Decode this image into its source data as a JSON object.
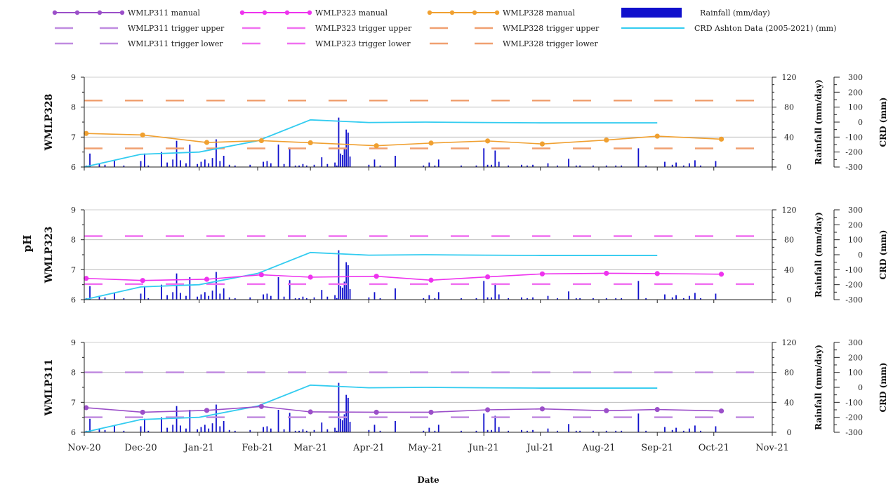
{
  "chart_data": {
    "type": "line",
    "shared": {
      "x_tick_labels": [
        "Nov-20",
        "Dec-20",
        "Jan-21",
        "Feb-21",
        "Mar-21",
        "Apr-21",
        "May-21",
        "Jun-21",
        "Jul-21",
        "Aug-21",
        "Sep-21",
        "Oct-21",
        "Nov-21"
      ],
      "x_tick_dates": [
        "2020-11-01",
        "2020-12-01",
        "2021-01-01",
        "2021-02-01",
        "2021-03-01",
        "2021-04-01",
        "2021-05-01",
        "2021-06-01",
        "2021-07-01",
        "2021-08-01",
        "2021-09-01",
        "2021-10-01",
        "2021-11-01"
      ],
      "xlim": [
        "2020-11-01",
        "2021-11-01"
      ],
      "xlabel": "Date",
      "ylabel_main": "pH",
      "ylim_ph": [
        6,
        9
      ],
      "yticks_ph": [
        6,
        7,
        8,
        9
      ],
      "ylabel_rain": "Rainfall (mm/day)",
      "ylim_rain": [
        0,
        120
      ],
      "yticks_rain": [
        0,
        40,
        80,
        120
      ],
      "ylabel_crd": "CRD (mm)",
      "ylim_crd": [
        -300,
        300
      ],
      "yticks_crd": [
        -300,
        -200,
        -100,
        0,
        100,
        200,
        300
      ],
      "grid": "horizontal at pH 7 and 8",
      "legend_position": "top"
    },
    "legend": [
      {
        "label": "WMLP311 manual",
        "style": "line-marker",
        "color": "#9b4fc9"
      },
      {
        "label": "WMLP323 manual",
        "style": "line-marker",
        "color": "#ee33ee"
      },
      {
        "label": "WMLP328 manual",
        "style": "line-marker",
        "color": "#f0a030"
      },
      {
        "label": "Rainfall (mm/day)",
        "style": "bar",
        "color": "#1010cc"
      },
      {
        "label": "WMLP311 trigger upper",
        "style": "dash",
        "color": "#c08be0"
      },
      {
        "label": "WMLP323 trigger upper",
        "style": "dash",
        "color": "#f070f0"
      },
      {
        "label": "WMLP328 trigger upper",
        "style": "dash",
        "color": "#f0a070"
      },
      {
        "label": "CRD Ashton Data (2005-2021) (mm)",
        "style": "line",
        "color": "#33ccf0"
      },
      {
        "label": "WMLP311 trigger lower",
        "style": "dash",
        "color": "#c08be0"
      },
      {
        "label": "WMLP323 trigger lower",
        "style": "dash",
        "color": "#f070f0"
      },
      {
        "label": "WMLP328 trigger lower",
        "style": "dash",
        "color": "#f0a070"
      }
    ],
    "rainfall": {
      "dates": [
        "2020-11-02",
        "2020-11-04",
        "2020-11-09",
        "2020-11-12",
        "2020-11-17",
        "2020-11-22",
        "2020-12-01",
        "2020-12-03",
        "2020-12-05",
        "2020-12-12",
        "2020-12-15",
        "2020-12-18",
        "2020-12-20",
        "2020-12-22",
        "2020-12-25",
        "2020-12-27",
        "2020-12-31",
        "2021-01-02",
        "2021-01-04",
        "2021-01-06",
        "2021-01-08",
        "2021-01-10",
        "2021-01-12",
        "2021-01-14",
        "2021-01-17",
        "2021-01-20",
        "2021-01-28",
        "2021-02-04",
        "2021-02-06",
        "2021-02-08",
        "2021-02-12",
        "2021-02-15",
        "2021-02-18",
        "2021-02-21",
        "2021-02-23",
        "2021-02-25",
        "2021-02-27",
        "2021-03-03",
        "2021-03-07",
        "2021-03-10",
        "2021-03-14",
        "2021-03-15",
        "2021-03-16",
        "2021-03-17",
        "2021-03-18",
        "2021-03-19",
        "2021-03-20",
        "2021-03-21",
        "2021-03-22",
        "2021-04-01",
        "2021-04-04",
        "2021-04-07",
        "2021-04-15",
        "2021-04-30",
        "2021-05-03",
        "2021-05-06",
        "2021-05-08",
        "2021-05-20",
        "2021-05-28",
        "2021-06-01",
        "2021-06-03",
        "2021-06-05",
        "2021-06-07",
        "2021-06-09",
        "2021-06-14",
        "2021-06-21",
        "2021-06-24",
        "2021-06-27",
        "2021-07-05",
        "2021-07-10",
        "2021-07-16",
        "2021-07-20",
        "2021-07-22",
        "2021-07-29",
        "2021-08-05",
        "2021-08-10",
        "2021-08-13",
        "2021-08-22",
        "2021-08-26",
        "2021-09-05",
        "2021-09-09",
        "2021-09-11",
        "2021-09-15",
        "2021-09-18",
        "2021-09-21",
        "2021-09-24",
        "2021-10-02"
      ],
      "values": [
        2,
        18,
        4,
        3,
        9,
        2,
        8,
        18,
        2,
        20,
        6,
        10,
        35,
        9,
        5,
        30,
        4,
        7,
        10,
        5,
        12,
        37,
        8,
        15,
        3,
        2,
        3,
        7,
        8,
        5,
        30,
        4,
        26,
        2,
        2,
        4,
        2,
        3,
        13,
        4,
        6,
        2,
        66,
        18,
        16,
        24,
        50,
        46,
        14,
        3,
        10,
        2,
        15,
        2,
        6,
        2,
        10,
        2,
        2,
        25,
        3,
        3,
        22,
        7,
        2,
        3,
        2,
        3,
        5,
        2,
        11,
        2,
        2,
        2,
        2,
        2,
        2,
        25,
        2,
        7,
        3,
        6,
        2,
        5,
        9,
        2,
        8
      ]
    },
    "crd": {
      "name": "CRD Ashton Data (2005-2021) (mm)",
      "dates": [
        "2020-11-01",
        "2020-12-01",
        "2021-01-01",
        "2021-02-01",
        "2021-03-01",
        "2021-04-01",
        "2021-05-01",
        "2021-06-01",
        "2021-07-01",
        "2021-08-01",
        "2021-09-01"
      ],
      "values": [
        -300,
        -215,
        -200,
        -125,
        15,
        -3,
        0,
        -3,
        -5,
        -5,
        -5
      ]
    },
    "panels": [
      {
        "title": "WMLP328",
        "manual_series": {
          "name": "WMLP328 manual",
          "color": "#f0a030",
          "dates": [
            "2020-11-02",
            "2020-12-02",
            "2021-01-05",
            "2021-02-03",
            "2021-03-01",
            "2021-04-05",
            "2021-05-04",
            "2021-06-03",
            "2021-07-02",
            "2021-08-05",
            "2021-09-01",
            "2021-10-05"
          ],
          "values": [
            7.12,
            7.07,
            6.82,
            6.88,
            6.81,
            6.71,
            6.8,
            6.87,
            6.77,
            6.9,
            7.03,
            6.93
          ]
        },
        "trigger_upper": 8.22,
        "trigger_lower": 6.62,
        "trigger_color": "#f0a070"
      },
      {
        "title": "WMLP323",
        "manual_series": {
          "name": "WMLP323 manual",
          "color": "#ee33ee",
          "dates": [
            "2020-11-02",
            "2020-12-02",
            "2021-01-05",
            "2021-02-03",
            "2021-03-01",
            "2021-04-05",
            "2021-05-04",
            "2021-06-03",
            "2021-07-02",
            "2021-08-05",
            "2021-09-01",
            "2021-10-05"
          ],
          "values": [
            6.71,
            6.64,
            6.68,
            6.83,
            6.75,
            6.78,
            6.65,
            6.76,
            6.86,
            6.88,
            6.87,
            6.85
          ]
        },
        "trigger_upper": 8.12,
        "trigger_lower": 6.52,
        "trigger_color": "#f070f0"
      },
      {
        "title": "WMLP311",
        "manual_series": {
          "name": "WMLP311 manual",
          "color": "#9b4fc9",
          "dates": [
            "2020-11-02",
            "2020-12-02",
            "2021-01-05",
            "2021-02-03",
            "2021-03-01",
            "2021-04-05",
            "2021-05-04",
            "2021-06-03",
            "2021-07-02",
            "2021-08-05",
            "2021-09-01",
            "2021-10-05"
          ],
          "values": [
            6.82,
            6.67,
            6.73,
            6.86,
            6.68,
            6.67,
            6.67,
            6.75,
            6.78,
            6.72,
            6.76,
            6.71
          ]
        },
        "trigger_upper": 8.0,
        "trigger_lower": 6.5,
        "trigger_color": "#c08be0"
      }
    ]
  }
}
